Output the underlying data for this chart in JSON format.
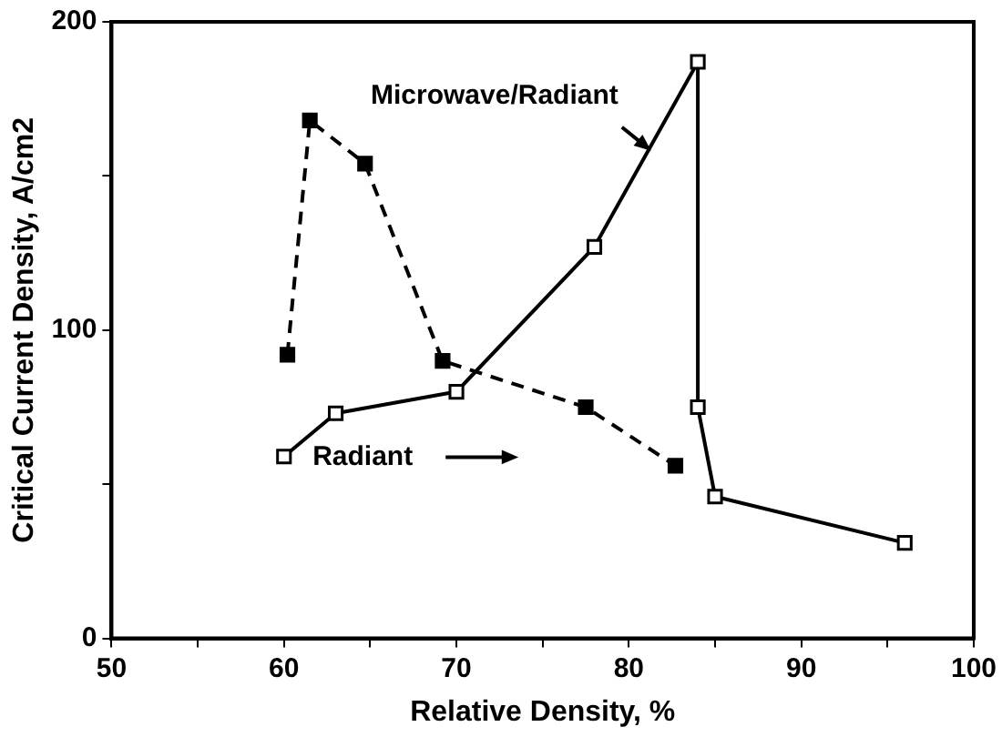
{
  "chart_data": {
    "type": "line",
    "xlabel": "Relative Density, %",
    "ylabel": "Critical Current Density, A/cm2",
    "xlim": [
      50,
      100
    ],
    "xticks": [
      50,
      {
        "value": 55,
        "label": null
      },
      60,
      {
        "value": 65,
        "label": null
      },
      70,
      {
        "value": 75,
        "label": null
      },
      80,
      {
        "value": 85,
        "label": null
      },
      90,
      {
        "value": 95,
        "label": null
      },
      100
    ],
    "ylim": [
      0,
      200
    ],
    "yticks": [
      0,
      {
        "value": 50,
        "label": null
      },
      100,
      {
        "value": 150,
        "label": null
      },
      200
    ],
    "grid": false,
    "marker": "square",
    "annotations": [
      {
        "text": "Microwave/Radiant",
        "x": 81.5,
        "y": 157
      },
      "Radiant"
    ],
    "legend": false,
    "series": [
      {
        "color": "#000000",
        "line_style": "solid",
        "x": [
          60,
          63,
          70,
          78,
          84,
          84,
          85,
          96
        ],
        "values": [
          59,
          73,
          80,
          127,
          187,
          75,
          46,
          31
        ]
      },
      {
        "color": "#000000",
        "line_style": "dashed",
        "x": [
          60.2,
          61.5,
          64.7,
          69.2,
          77.5,
          82.7
        ],
        "values": [
          92,
          168,
          154,
          90,
          75,
          56
        ]
      }
    ]
  }
}
